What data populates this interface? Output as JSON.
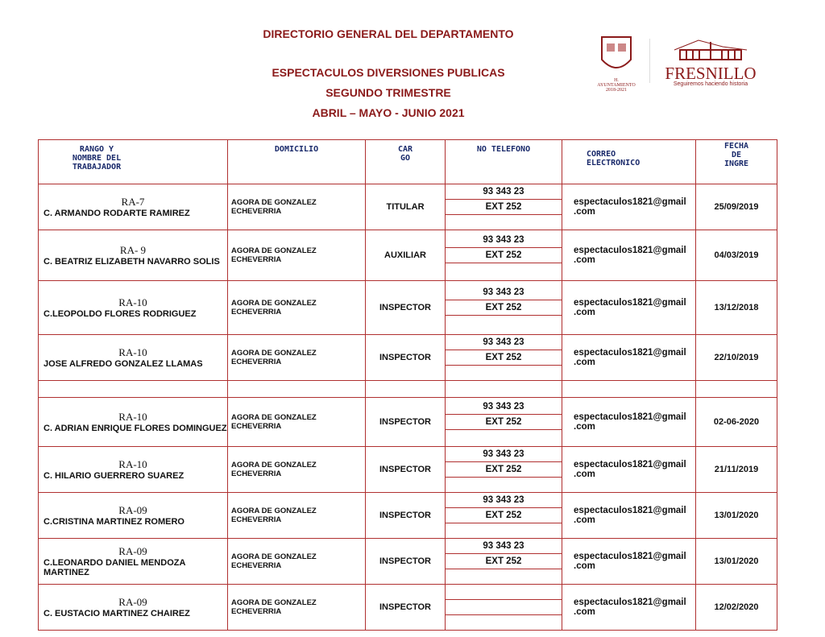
{
  "header": {
    "title": "DIRECTORIO GENERAL DEL DEPARTAMENTO",
    "subtitle": "ESPECTACULOS DIVERSIONES PUBLICAS",
    "period": "SEGUNDO  TRIMESTRE",
    "months": "ABRIL – MAYO - JUNIO 2021"
  },
  "logos": {
    "seal_text": "H. AYUNTAMIENTO 2018-2021",
    "brand": "FRESNILLO",
    "slogan": "Seguiremos haciendo historia"
  },
  "columns": {
    "name": "RANGO Y NOMBRE DEL TRABAJADOR",
    "address": "DOMICILIO",
    "role": "CAR GO",
    "phone": "NO TELEFONO",
    "email": "CORREO ELECTRONICO",
    "date": "FECHA DE INGRE"
  },
  "rows": [
    {
      "rank": "RA-7",
      "name": "C. ARMANDO RODARTE RAMIREZ",
      "address": "AGORA DE GONZALEZ ECHEVERRIA",
      "role": "TITULAR",
      "phone": "93 343 23",
      "ext": "EXT 252",
      "email": "espectaculos1821@gmail .com",
      "date": "25/09/2019"
    },
    {
      "rank": "RA- 9",
      "name": "C. BEATRIZ ELIZABETH NAVARRO SOLIS",
      "address": "AGORA DE GONZALEZ ECHEVERRIA",
      "role": "AUXILIAR",
      "phone": "93 343 23",
      "ext": "EXT 252",
      "email": "espectaculos1821@gmail .com",
      "date": "04/03/2019"
    },
    {
      "rank": "RA-10",
      "name": "C.LEOPOLDO FLORES RODRIGUEZ",
      "address": "AGORA DE GONZALEZ ECHEVERRIA",
      "role": "INSPECTOR",
      "phone": "93 343 23",
      "ext": "EXT 252",
      "email": "espectaculos1821@gmail .com",
      "date": "13/12/2018"
    },
    {
      "rank": "RA-10",
      "name": "JOSE ALFREDO GONZALEZ LLAMAS",
      "address": "AGORA DE GONZALEZ ECHEVERRIA",
      "role": "INSPECTOR",
      "phone": "93 343 23",
      "ext": "EXT 252",
      "email": "espectaculos1821@gmail .com",
      "date": "22/10/2019"
    },
    {
      "rank": "RA-10",
      "name": "C. ADRIAN ENRIQUE FLORES DOMINGUEZ",
      "address": "AGORA DE GONZALEZ ECHEVERRIA",
      "role": "INSPECTOR",
      "phone": "93 343 23",
      "ext": "EXT 252",
      "email": "espectaculos1821@gmail .com",
      "date": "02-06-2020"
    },
    {
      "rank": "RA-10",
      "name": "C. HILARIO GUERRERO SUAREZ",
      "address": "AGORA DE GONZALEZ ECHEVERRIA",
      "role": "INSPECTOR",
      "phone": "93 343 23",
      "ext": "EXT 252",
      "email": "espectaculos1821@gmail .com",
      "date": "21/11/2019"
    },
    {
      "rank": "RA-09",
      "name": "C.CRISTINA MARTINEZ ROMERO",
      "address": "AGORA DE GONZALEZ ECHEVERRIA",
      "role": "INSPECTOR",
      "phone": "93 343 23",
      "ext": "EXT 252",
      "email": "espectaculos1821@gmail .com",
      "date": "13/01/2020"
    },
    {
      "rank": "RA-09",
      "name": "C.LEONARDO DANIEL MENDOZA MARTINEZ",
      "address": "AGORA DE GONZALEZ ECHEVERRIA",
      "role": "INSPECTOR",
      "phone": "93 343 23",
      "ext": "EXT 252",
      "email": "espectaculos1821@gmail .com",
      "date": "13/01/2020"
    },
    {
      "rank": "RA-09",
      "name": "C. EUSTACIO MARTINEZ CHAIREZ",
      "address": "AGORA DE GONZALEZ ECHEVERRIA",
      "role": "INSPECTOR",
      "phone": "",
      "ext": "",
      "email": "espectaculos1821@gmail .com",
      "date": "12/02/2020"
    }
  ]
}
